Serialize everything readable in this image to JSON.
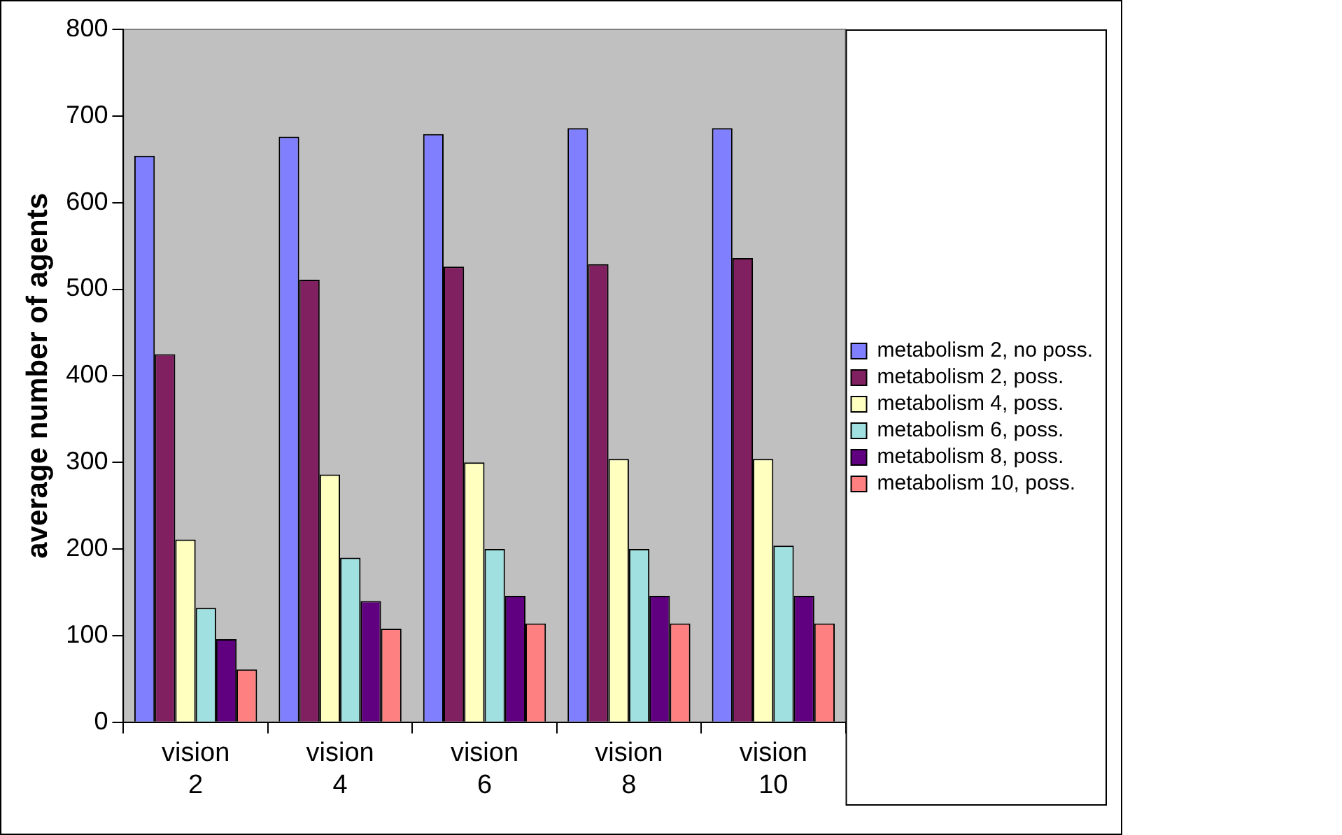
{
  "chart_data": {
    "type": "bar",
    "ylabel": "average number of agents",
    "categories": [
      "vision 2",
      "vision 4",
      "vision 6",
      "vision 8",
      "vision 10"
    ],
    "series": [
      {
        "name": "metabolism 2, no poss.",
        "color": "#8080ff",
        "values": [
          654,
          676,
          679,
          686,
          686
        ]
      },
      {
        "name": "metabolism 2, poss.",
        "color": "#802060",
        "values": [
          425,
          511,
          526,
          529,
          536
        ]
      },
      {
        "name": "metabolism 4, poss.",
        "color": "#ffffc0",
        "values": [
          211,
          286,
          300,
          304,
          304
        ]
      },
      {
        "name": "metabolism 6, poss.",
        "color": "#a0e0e0",
        "values": [
          132,
          190,
          200,
          200,
          204
        ]
      },
      {
        "name": "metabolism 8, poss.",
        "color": "#600080",
        "values": [
          96,
          140,
          146,
          146,
          146
        ]
      },
      {
        "name": "metabolism 10, poss.",
        "color": "#ff8080",
        "values": [
          61,
          108,
          114,
          114,
          114
        ]
      }
    ],
    "ylim": [
      0,
      800
    ],
    "yticks": [
      0,
      100,
      200,
      300,
      400,
      500,
      600,
      700,
      800
    ],
    "grid": false,
    "legend": "right"
  }
}
